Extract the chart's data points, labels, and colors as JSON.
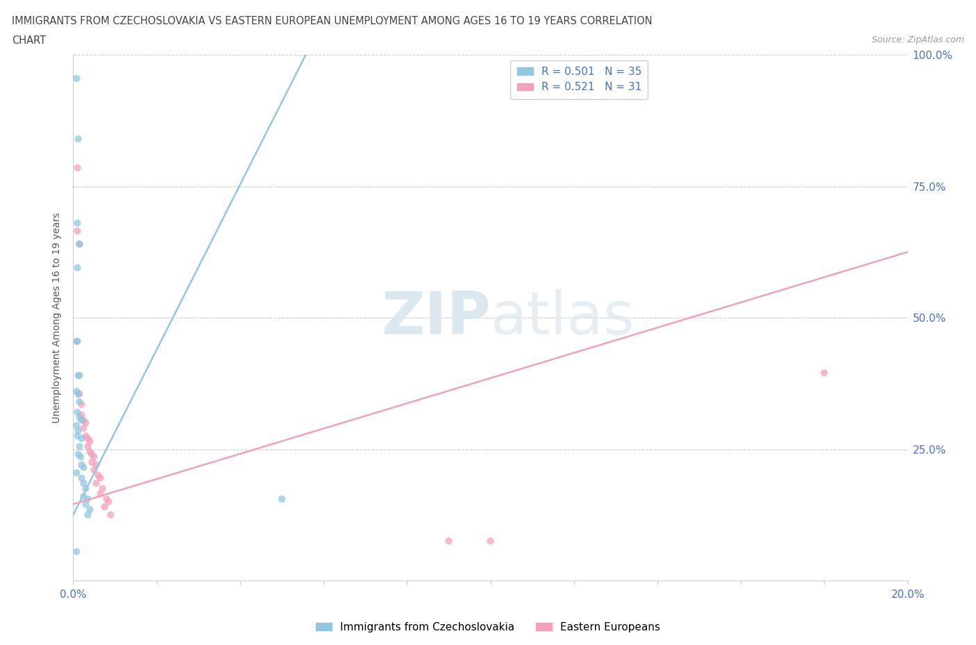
{
  "title_line1": "IMMIGRANTS FROM CZECHOSLOVAKIA VS EASTERN EUROPEAN UNEMPLOYMENT AMONG AGES 16 TO 19 YEARS CORRELATION",
  "title_line2": "CHART",
  "source": "Source: ZipAtlas.com",
  "ylabel": "Unemployment Among Ages 16 to 19 years",
  "xlim": [
    0.0,
    0.2
  ],
  "ylim": [
    0.0,
    1.0
  ],
  "legend1_label": "R = 0.501   N = 35",
  "legend2_label": "R = 0.521   N = 31",
  "color_blue": "#91C7E0",
  "color_pink": "#F4A0BA",
  "watermark_zip": "ZIP",
  "watermark_atlas": "atlas",
  "blue_scatter": [
    [
      0.0008,
      0.955
    ],
    [
      0.0012,
      0.84
    ],
    [
      0.001,
      0.68
    ],
    [
      0.0015,
      0.64
    ],
    [
      0.001,
      0.595
    ],
    [
      0.0008,
      0.455
    ],
    [
      0.001,
      0.455
    ],
    [
      0.0012,
      0.39
    ],
    [
      0.0015,
      0.39
    ],
    [
      0.0008,
      0.36
    ],
    [
      0.0012,
      0.355
    ],
    [
      0.0015,
      0.34
    ],
    [
      0.001,
      0.32
    ],
    [
      0.0015,
      0.31
    ],
    [
      0.002,
      0.305
    ],
    [
      0.0008,
      0.295
    ],
    [
      0.0012,
      0.285
    ],
    [
      0.001,
      0.275
    ],
    [
      0.002,
      0.27
    ],
    [
      0.0015,
      0.255
    ],
    [
      0.0012,
      0.24
    ],
    [
      0.0018,
      0.235
    ],
    [
      0.002,
      0.22
    ],
    [
      0.0025,
      0.215
    ],
    [
      0.0008,
      0.205
    ],
    [
      0.002,
      0.195
    ],
    [
      0.0025,
      0.185
    ],
    [
      0.003,
      0.175
    ],
    [
      0.0025,
      0.16
    ],
    [
      0.0035,
      0.155
    ],
    [
      0.003,
      0.145
    ],
    [
      0.004,
      0.135
    ],
    [
      0.0035,
      0.125
    ],
    [
      0.0008,
      0.055
    ],
    [
      0.05,
      0.155
    ]
  ],
  "pink_scatter": [
    [
      0.001,
      0.785
    ],
    [
      0.001,
      0.665
    ],
    [
      0.0015,
      0.64
    ],
    [
      0.0015,
      0.355
    ],
    [
      0.002,
      0.335
    ],
    [
      0.002,
      0.315
    ],
    [
      0.0025,
      0.305
    ],
    [
      0.003,
      0.3
    ],
    [
      0.0025,
      0.29
    ],
    [
      0.003,
      0.275
    ],
    [
      0.0035,
      0.27
    ],
    [
      0.004,
      0.265
    ],
    [
      0.0035,
      0.255
    ],
    [
      0.004,
      0.245
    ],
    [
      0.0045,
      0.24
    ],
    [
      0.005,
      0.235
    ],
    [
      0.0045,
      0.225
    ],
    [
      0.0055,
      0.22
    ],
    [
      0.005,
      0.21
    ],
    [
      0.006,
      0.2
    ],
    [
      0.0065,
      0.195
    ],
    [
      0.0055,
      0.185
    ],
    [
      0.007,
      0.175
    ],
    [
      0.0065,
      0.165
    ],
    [
      0.008,
      0.155
    ],
    [
      0.0085,
      0.15
    ],
    [
      0.0075,
      0.14
    ],
    [
      0.009,
      0.125
    ],
    [
      0.09,
      0.075
    ],
    [
      0.1,
      0.075
    ],
    [
      0.18,
      0.395
    ]
  ],
  "blue_line_x": [
    0.0,
    0.057
  ],
  "blue_line_y": [
    0.125,
    1.02
  ],
  "pink_line_x": [
    0.0,
    0.2
  ],
  "pink_line_y": [
    0.145,
    0.625
  ]
}
